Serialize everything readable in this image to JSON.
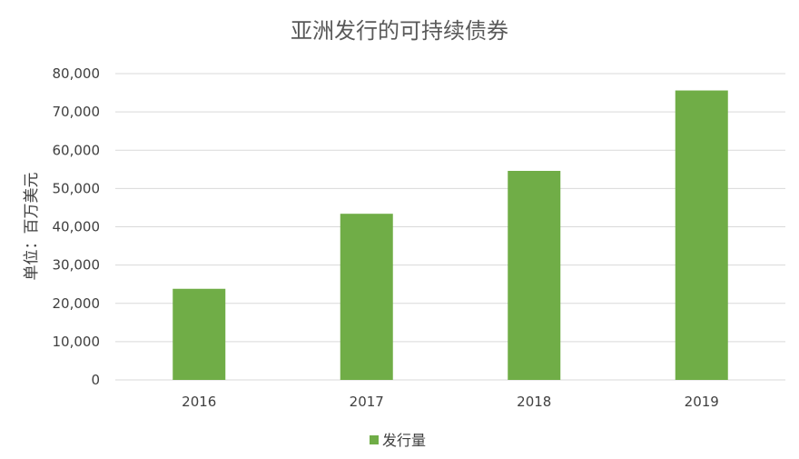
{
  "chart_data": {
    "type": "bar",
    "title": "亚洲发行的可持续债券",
    "xlabel": "",
    "ylabel": "单位：百万美元",
    "categories": [
      "2016",
      "2017",
      "2018",
      "2019"
    ],
    "series": [
      {
        "name": "发行量",
        "values": [
          23800,
          43400,
          54600,
          75600
        ],
        "color": "#70ad47"
      }
    ],
    "ylim": [
      0,
      80000
    ],
    "yticks": [
      "0",
      "10,000",
      "20,000",
      "30,000",
      "40,000",
      "50,000",
      "60,000",
      "70,000",
      "80,000"
    ],
    "ytick_values": [
      0,
      10000,
      20000,
      30000,
      40000,
      50000,
      60000,
      70000,
      80000
    ],
    "grid": true,
    "legend_position": "bottom"
  }
}
